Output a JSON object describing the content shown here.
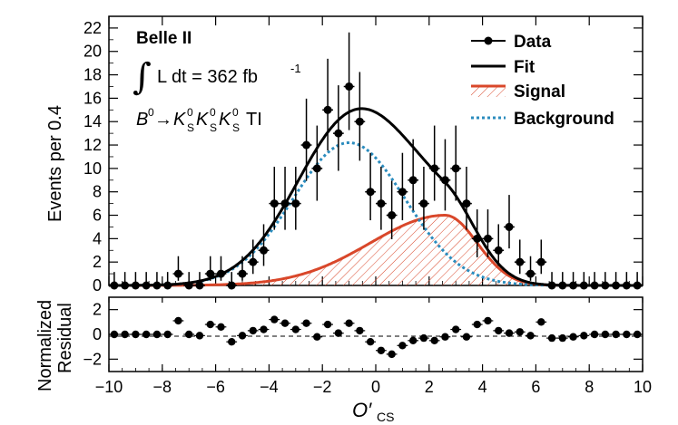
{
  "chart_data": {
    "type": "line",
    "experiment": "Belle II",
    "luminosity_text": "L dt = 362 fb",
    "luminosity_exp": "-1",
    "process": {
      "b": "B",
      "b_sup": "0",
      "arrow": "→",
      "k": "K",
      "k_sup": "0",
      "k_sub": "S",
      "suffix": "TI"
    },
    "xlabel": "O′",
    "xlabel_sub": "CS",
    "ylabel_top": "Events per 0.4",
    "ylabel_bottom_1": "Normalized",
    "ylabel_bottom_2": "Residual",
    "xlim": [
      -10,
      10
    ],
    "ylim_top": [
      0,
      23
    ],
    "ylim_bottom": [
      -3,
      3
    ],
    "x_ticks": [
      -10,
      -8,
      -6,
      -4,
      -2,
      0,
      2,
      4,
      6,
      8,
      10
    ],
    "y_ticks_top": [
      0,
      2,
      4,
      6,
      8,
      10,
      12,
      14,
      16,
      18,
      20,
      22
    ],
    "y_ticks_bottom": [
      -2,
      0,
      2
    ],
    "legend": [
      {
        "name": "Data",
        "style": "marker",
        "color": "#000000"
      },
      {
        "name": "Fit",
        "style": "solid",
        "color": "#000000"
      },
      {
        "name": "Signal",
        "style": "hatched",
        "color": "#d9472a"
      },
      {
        "name": "Background",
        "style": "dotted",
        "color": "#2b8cbe"
      }
    ],
    "data": {
      "x": [
        -9.8,
        -9.4,
        -9.0,
        -8.6,
        -8.2,
        -7.8,
        -7.4,
        -7.0,
        -6.6,
        -6.2,
        -5.8,
        -5.4,
        -5.0,
        -4.6,
        -4.2,
        -3.8,
        -3.4,
        -3.0,
        -2.6,
        -2.2,
        -1.8,
        -1.4,
        -1.0,
        -0.6,
        -0.2,
        0.2,
        0.6,
        1.0,
        1.4,
        1.8,
        2.2,
        2.6,
        3.0,
        3.4,
        3.8,
        4.2,
        4.6,
        5.0,
        5.4,
        5.8,
        6.2,
        6.6,
        7.0,
        7.4,
        7.8,
        8.2,
        8.6,
        9.0,
        9.4,
        9.8
      ],
      "y": [
        0,
        0,
        0,
        0,
        0,
        0,
        1,
        0,
        0,
        1,
        1,
        0,
        1,
        2,
        3,
        7,
        7,
        7,
        12,
        10,
        15,
        13,
        17,
        14,
        8,
        7,
        6,
        8,
        9,
        7,
        10,
        9,
        10,
        7,
        4,
        4,
        3,
        5,
        2,
        1,
        2,
        0,
        0,
        0,
        0,
        0,
        0,
        0,
        0,
        0
      ]
    },
    "signal_params": {
      "amplitude": 6.0,
      "mean": 2.6,
      "sigma_left": 2.8,
      "sigma_right": 1.2
    },
    "background_params": {
      "amplitude": 12.2,
      "mean": -1.0,
      "sigma": 2.1
    },
    "residuals": [
      0,
      0,
      0,
      0,
      0,
      0,
      1.1,
      0,
      -0.1,
      0.8,
      0.6,
      -0.6,
      -0.1,
      0.3,
      0.4,
      1.2,
      0.9,
      0.4,
      0.9,
      -0.2,
      0.8,
      0.1,
      0.9,
      0.3,
      -0.6,
      -1.3,
      -1.6,
      -0.9,
      -0.5,
      -0.3,
      -0.5,
      -0.2,
      0.4,
      -0.2,
      0.8,
      1.1,
      0.3,
      0.1,
      0.2,
      -0.1,
      1.0,
      -0.3,
      -0.3,
      -0.2,
      -0.1,
      0,
      0,
      0,
      0,
      0
    ]
  }
}
